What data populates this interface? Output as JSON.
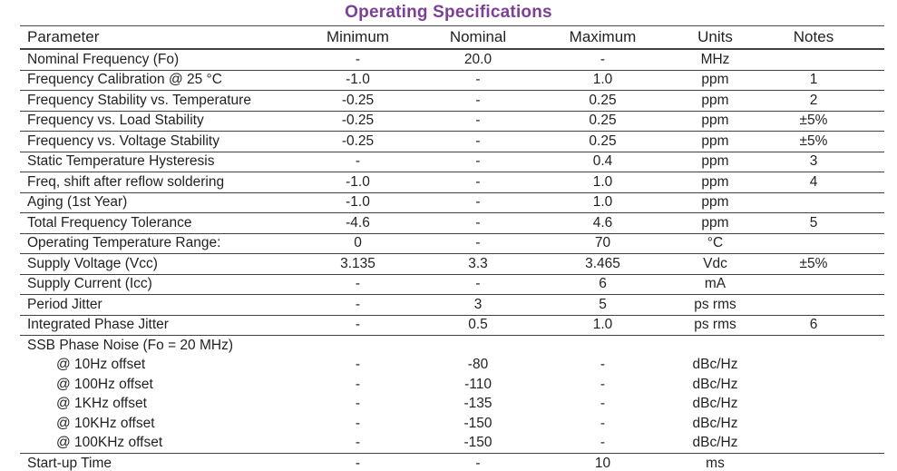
{
  "title": "Operating Specifications",
  "accent_color": "#7d4095",
  "text_color": "#231f20",
  "rule_color": "#414042",
  "table": {
    "headers": [
      "Parameter",
      "Minimum",
      "Nominal",
      "Maximum",
      "Units",
      "Notes"
    ],
    "rows": [
      {
        "param": "Nominal Frequency (Fo)",
        "min": "-",
        "nom": "20.0",
        "max": "-",
        "units": "MHz",
        "notes": ""
      },
      {
        "param": "Frequency Calibration @ 25 °C",
        "min": "-1.0",
        "nom": "-",
        "max": "1.0",
        "units": "ppm",
        "notes": "1"
      },
      {
        "param": "Frequency Stability vs. Temperature",
        "min": "-0.25",
        "nom": "-",
        "max": "0.25",
        "units": "ppm",
        "notes": "2"
      },
      {
        "param": "Frequency vs. Load Stability",
        "min": "-0.25",
        "nom": "-",
        "max": "0.25",
        "units": "ppm",
        "notes": "±5%"
      },
      {
        "param": "Frequency vs. Voltage Stability",
        "min": "-0.25",
        "nom": "-",
        "max": "0.25",
        "units": "ppm",
        "notes": "±5%"
      },
      {
        "param": "Static Temperature Hysteresis",
        "min": "-",
        "nom": "-",
        "max": "0.4",
        "units": "ppm",
        "notes": "3"
      },
      {
        "param": "Freq, shift after reflow soldering",
        "min": "-1.0",
        "nom": "-",
        "max": "1.0",
        "units": "ppm",
        "notes": "4"
      },
      {
        "param": "Aging (1st Year)",
        "min": "-1.0",
        "nom": "-",
        "max": "1.0",
        "units": "ppm",
        "notes": ""
      },
      {
        "param": "Total Frequency Tolerance",
        "min": "-4.6",
        "nom": "-",
        "max": "4.6",
        "units": "ppm",
        "notes": "5"
      },
      {
        "param": "Operating Temperature Range:",
        "min": "0",
        "nom": "-",
        "max": "70",
        "units": "°C",
        "notes": ""
      },
      {
        "param": "Supply Voltage (Vcc)",
        "min": "3.135",
        "nom": "3.3",
        "max": "3.465",
        "units": "Vdc",
        "notes": "±5%"
      },
      {
        "param": "Supply Current (Icc)",
        "min": "-",
        "nom": "-",
        "max": "6",
        "units": "mA",
        "notes": ""
      },
      {
        "param": "Period Jitter",
        "min": "-",
        "nom": "3",
        "max": "5",
        "units": "ps rms",
        "notes": ""
      },
      {
        "param": "Integrated Phase Jitter",
        "min": "-",
        "nom": "0.5",
        "max": "1.0",
        "units": "ps rms",
        "notes": "6"
      },
      {
        "param": "SSB Phase Noise (Fo = 20 MHz)",
        "min": "",
        "nom": "",
        "max": "",
        "units": "",
        "notes": "",
        "section": true,
        "no_border": true
      },
      {
        "param": "@ 10Hz offset",
        "min": "-",
        "nom": "-80",
        "max": "-",
        "units": "dBc/Hz",
        "notes": "",
        "indent": true,
        "no_border": true
      },
      {
        "param": "@ 100Hz offset",
        "min": "-",
        "nom": "-110",
        "max": "-",
        "units": "dBc/Hz",
        "notes": "",
        "indent": true,
        "no_border": true
      },
      {
        "param": "@ 1KHz offset",
        "min": "-",
        "nom": "-135",
        "max": "-",
        "units": "dBc/Hz",
        "notes": "",
        "indent": true,
        "no_border": true
      },
      {
        "param": "@ 10KHz offset",
        "min": "-",
        "nom": "-150",
        "max": "-",
        "units": "dBc/Hz",
        "notes": "",
        "indent": true,
        "no_border": true
      },
      {
        "param": "@ 100KHz offset",
        "min": "-",
        "nom": "-150",
        "max": "-",
        "units": "dBc/Hz",
        "notes": "",
        "indent": true
      },
      {
        "param": "Start-up Time",
        "min": "-",
        "nom": "-",
        "max": "10",
        "units": "ms",
        "notes": "",
        "last": true
      }
    ]
  }
}
